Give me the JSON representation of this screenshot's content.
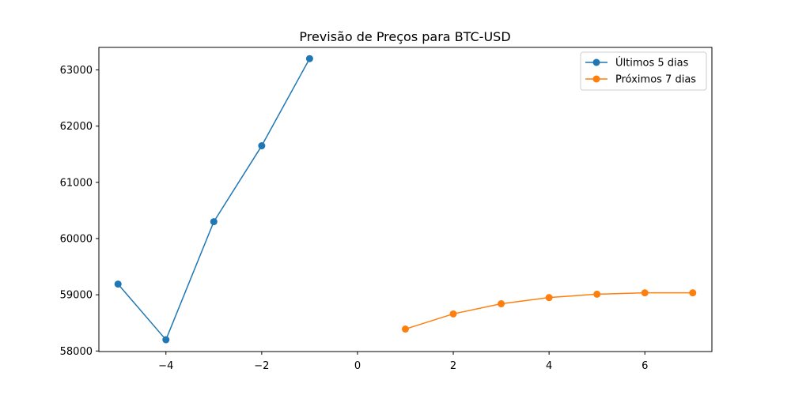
{
  "chart_data": {
    "type": "line",
    "title": "Previsão de Preços para BTC-USD",
    "xlabel": "",
    "ylabel": "",
    "xlim": [
      -5.4,
      7.4
    ],
    "ylim": [
      57990,
      63400
    ],
    "xticks": [
      -4,
      -2,
      0,
      2,
      4,
      6
    ],
    "xtick_labels": [
      "−4",
      "−2",
      "0",
      "2",
      "4",
      "6"
    ],
    "yticks": [
      58000,
      59000,
      60000,
      61000,
      62000,
      63000
    ],
    "ytick_labels": [
      "58000",
      "59000",
      "60000",
      "61000",
      "62000",
      "63000"
    ],
    "grid": false,
    "legend_position": "top-right",
    "series": [
      {
        "name": "Últimos 5 dias",
        "color": "#1f77b4",
        "x": [
          -5,
          -4,
          -3,
          -2,
          -1
        ],
        "y": [
          59190,
          58200,
          60300,
          61650,
          63200
        ]
      },
      {
        "name": "Próximos 7 dias",
        "color": "#ff7f0e",
        "x": [
          1,
          2,
          3,
          4,
          5,
          6,
          7
        ],
        "y": [
          58390,
          58660,
          58840,
          58950,
          59010,
          59035,
          59035
        ]
      }
    ]
  }
}
